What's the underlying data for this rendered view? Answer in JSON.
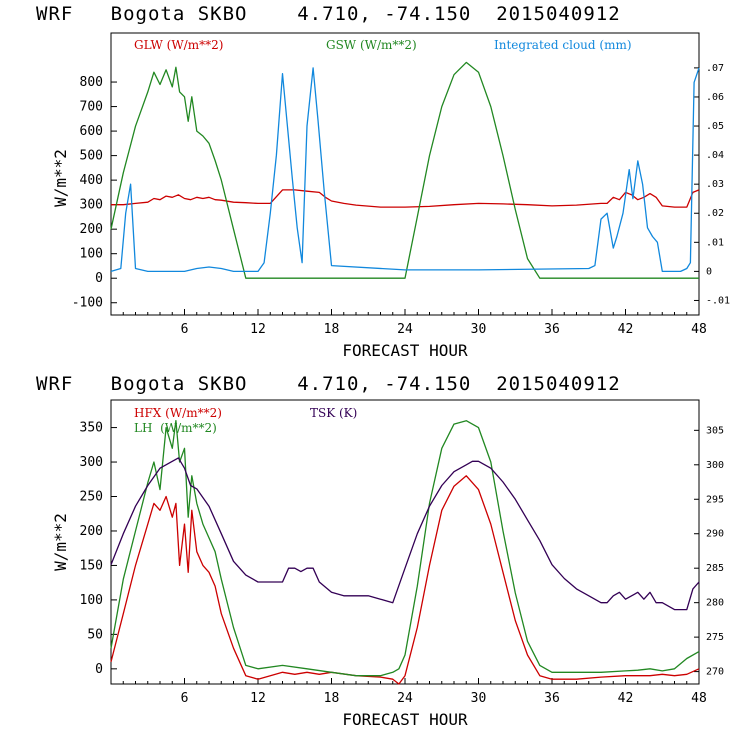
{
  "chart_data": [
    {
      "type": "line",
      "title": "WRF   Bogota SKBO    4.710, -74.150  2015040912",
      "xlabel": "FORECAST HOUR",
      "ylabel": "W/m**2",
      "xlim": [
        0,
        48
      ],
      "ylim": [
        -150,
        1000
      ],
      "y2lim": [
        -0.015,
        0.082
      ],
      "x_ticks": [
        6,
        12,
        18,
        24,
        30,
        36,
        42,
        48
      ],
      "y_ticks": [
        -100,
        0,
        100,
        200,
        300,
        400,
        500,
        600,
        700,
        800
      ],
      "y2_ticks": [
        ".07",
        ".06",
        ".05",
        ".04",
        ".03",
        ".02",
        ".01",
        "0",
        "-.01"
      ],
      "y2_tick_values": [
        0.07,
        0.06,
        0.05,
        0.04,
        0.03,
        0.02,
        0.01,
        0,
        -0.01
      ],
      "grid": false,
      "series": [
        {
          "name": "GLW (W/m**2)",
          "color": "#cc0000",
          "axis": "left",
          "x": [
            0,
            1,
            2,
            3,
            3.5,
            4,
            4.5,
            5,
            5.5,
            6,
            6.5,
            7,
            7.5,
            8,
            8.5,
            9,
            10,
            11,
            12,
            13,
            14,
            15,
            16,
            17,
            17.5,
            18,
            19,
            20,
            22,
            24,
            26,
            28,
            30,
            32,
            34,
            36,
            38,
            40,
            40.5,
            41,
            41.5,
            42,
            42.5,
            43,
            43.5,
            44,
            44.5,
            45,
            46,
            47,
            47.5,
            48
          ],
          "y": [
            300,
            300,
            305,
            310,
            325,
            320,
            335,
            330,
            340,
            325,
            320,
            330,
            325,
            330,
            320,
            318,
            310,
            308,
            305,
            305,
            360,
            360,
            355,
            350,
            330,
            315,
            305,
            298,
            290,
            290,
            293,
            300,
            305,
            303,
            300,
            295,
            298,
            305,
            305,
            330,
            320,
            350,
            340,
            320,
            330,
            345,
            330,
            295,
            290,
            290,
            350,
            360
          ]
        },
        {
          "name": "GSW (W/m**2)",
          "color": "#228822",
          "axis": "left",
          "x": [
            0,
            1,
            2,
            3,
            3.5,
            4,
            4.5,
            5,
            5.3,
            5.6,
            6,
            6.3,
            6.6,
            7,
            7.5,
            8,
            8.5,
            9,
            10,
            11,
            11.5,
            24,
            25,
            26,
            27,
            28,
            29,
            30,
            31,
            32,
            33,
            34,
            35,
            35.5,
            48
          ],
          "y": [
            200,
            430,
            620,
            760,
            840,
            790,
            850,
            780,
            860,
            760,
            740,
            640,
            740,
            600,
            580,
            550,
            480,
            400,
            200,
            0,
            0,
            0,
            250,
            500,
            700,
            830,
            880,
            840,
            700,
            500,
            280,
            80,
            0,
            0,
            0
          ]
        },
        {
          "name": "Integrated cloud (mm)",
          "color": "#1188dd",
          "axis": "right",
          "x": [
            0,
            0.8,
            1.2,
            1.6,
            2,
            3,
            6,
            7,
            8,
            9,
            10,
            12,
            12.5,
            13,
            13.5,
            14,
            14.4,
            14.8,
            15.2,
            15.6,
            16,
            16.5,
            16.9,
            17.4,
            18,
            24,
            30,
            39,
            39.5,
            40,
            40.5,
            41,
            41.3,
            41.8,
            42.3,
            42.6,
            43,
            43.4,
            43.8,
            44.2,
            44.6,
            45,
            46,
            46.5,
            47,
            47.3,
            47.6,
            48
          ],
          "y": [
            0,
            0.001,
            0.02,
            0.03,
            0.001,
            0,
            0,
            0.001,
            0.0015,
            0.001,
            0,
            0,
            0.003,
            0.02,
            0.04,
            0.068,
            0.05,
            0.032,
            0.015,
            0.003,
            0.05,
            0.07,
            0.052,
            0.028,
            0.002,
            0.0005,
            0.0005,
            0.001,
            0.002,
            0.018,
            0.02,
            0.008,
            0.012,
            0.02,
            0.035,
            0.025,
            0.038,
            0.03,
            0.015,
            0.012,
            0.01,
            0,
            0,
            0,
            0.001,
            0.003,
            0.065,
            0.07
          ]
        }
      ]
    },
    {
      "type": "line",
      "title": "WRF   Bogota SKBO    4.710, -74.150  2015040912",
      "xlabel": "FORECAST HOUR",
      "ylabel": "W/m**2",
      "xlim": [
        0,
        48
      ],
      "ylim": [
        -22,
        390
      ],
      "y2lim": [
        268.2,
        309.4
      ],
      "x_ticks": [
        6,
        12,
        18,
        24,
        30,
        36,
        42,
        48
      ],
      "y_ticks": [
        0,
        50,
        100,
        150,
        200,
        250,
        300,
        350
      ],
      "y2_ticks": [
        "305",
        "300",
        "295",
        "290",
        "285",
        "280",
        "275",
        "270"
      ],
      "y2_tick_values": [
        305,
        300,
        295,
        290,
        285,
        280,
        275,
        270
      ],
      "grid": false,
      "series": [
        {
          "name": "HFX (W/m**2)",
          "color": "#cc0000",
          "axis": "left",
          "x": [
            0,
            1,
            2,
            3,
            3.5,
            4,
            4.5,
            5,
            5.3,
            5.6,
            6,
            6.3,
            6.6,
            7,
            7.5,
            8,
            8.5,
            9,
            10,
            11,
            12,
            13,
            14,
            15,
            16,
            17,
            18,
            20,
            22,
            23,
            23.5,
            24,
            25,
            26,
            27,
            28,
            29,
            30,
            31,
            32,
            33,
            34,
            35,
            36,
            38,
            40,
            42,
            43,
            44,
            45,
            46,
            47,
            48
          ],
          "y": [
            10,
            80,
            150,
            210,
            240,
            230,
            250,
            220,
            240,
            150,
            210,
            140,
            230,
            170,
            150,
            140,
            120,
            80,
            30,
            -10,
            -15,
            -10,
            -5,
            -8,
            -5,
            -8,
            -5,
            -10,
            -12,
            -15,
            -25,
            -10,
            60,
            150,
            230,
            265,
            280,
            260,
            210,
            140,
            70,
            20,
            -10,
            -15,
            -15,
            -12,
            -10,
            -10,
            -10,
            -8,
            -10,
            -8,
            0
          ]
        },
        {
          "name": "LH  (W/m**2)",
          "color": "#228822",
          "axis": "left",
          "x": [
            0,
            1,
            2,
            3,
            3.5,
            4,
            4.5,
            5,
            5.3,
            5.6,
            6,
            6.3,
            6.6,
            7,
            7.5,
            8,
            8.5,
            9,
            10,
            11,
            12,
            14,
            16,
            18,
            20,
            22,
            23,
            23.5,
            24,
            25,
            26,
            27,
            28,
            29,
            30,
            31,
            32,
            33,
            34,
            35,
            36,
            38,
            40,
            42,
            43,
            44,
            45,
            46,
            47,
            48
          ],
          "y": [
            30,
            130,
            200,
            270,
            300,
            260,
            350,
            320,
            360,
            300,
            320,
            220,
            280,
            240,
            210,
            190,
            170,
            130,
            60,
            5,
            0,
            5,
            0,
            -5,
            -10,
            -10,
            -5,
            0,
            20,
            120,
            240,
            320,
            355,
            360,
            350,
            300,
            200,
            110,
            40,
            5,
            -5,
            -5,
            -5,
            -3,
            -2,
            0,
            -3,
            0,
            15,
            25
          ]
        },
        {
          "name": "TSK (K)",
          "color": "#330055",
          "axis": "right",
          "x": [
            0,
            1,
            2,
            3,
            4,
            5,
            5.5,
            6,
            6.5,
            7,
            8,
            9,
            10,
            11,
            12,
            13,
            14,
            14.5,
            15,
            15.5,
            16,
            16.5,
            17,
            18,
            19,
            20,
            21,
            22,
            23,
            24,
            25,
            26,
            27,
            28,
            29,
            29.5,
            30,
            31,
            32,
            33,
            34,
            35,
            36,
            37,
            38,
            39,
            40,
            40.5,
            41,
            41.5,
            42,
            42.5,
            43,
            43.5,
            44,
            44.5,
            45,
            46,
            47,
            47.5,
            48
          ],
          "y": [
            285.5,
            290,
            294,
            297,
            299.5,
            300.5,
            301,
            299.5,
            297,
            296.5,
            294,
            290,
            286,
            284,
            283,
            283,
            283,
            285,
            285,
            284.5,
            285,
            285,
            283,
            281.5,
            281,
            281,
            281,
            280.5,
            280,
            285,
            290,
            294,
            297,
            299,
            300,
            300.5,
            300.5,
            299.5,
            297.5,
            295,
            292,
            289,
            285.5,
            283.5,
            282,
            281,
            280,
            280,
            281,
            281.5,
            280.5,
            281,
            281.5,
            280.5,
            281.5,
            280,
            280,
            279,
            279,
            282,
            283
          ]
        }
      ]
    }
  ]
}
